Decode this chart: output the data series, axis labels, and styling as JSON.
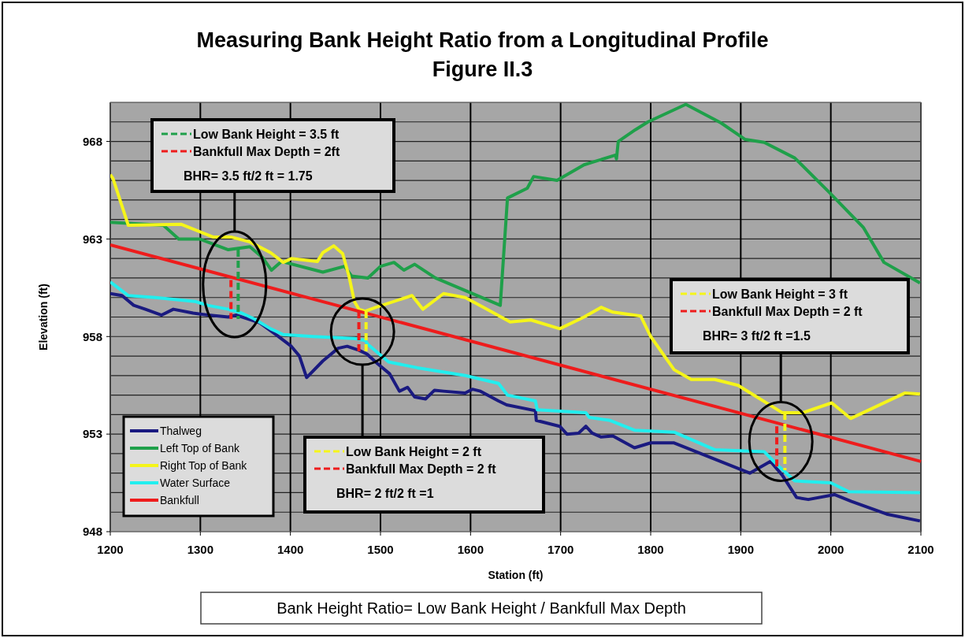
{
  "chart_data": {
    "type": "line",
    "title": "Measuring Bank Height Ratio from a Longitudinal Profile",
    "subtitle": "Figure II.3",
    "xlabel": "Station (ft)",
    "ylabel": "Elevation (ft)",
    "xlim": [
      1200,
      2100
    ],
    "xticks": [
      1200,
      1300,
      1400,
      1500,
      1600,
      1700,
      1800,
      1900,
      2000,
      2100
    ],
    "ylim": [
      948,
      970
    ],
    "yticks": [
      948,
      {
        "value": 949,
        "label": null
      },
      {
        "value": 950,
        "label": null
      },
      {
        "value": 951,
        "label": null
      },
      {
        "value": 952,
        "label": null
      },
      953,
      {
        "value": 954,
        "label": null
      },
      {
        "value": 955,
        "label": null
      },
      {
        "value": 956,
        "label": null
      },
      {
        "value": 957,
        "label": null
      },
      958,
      {
        "value": 959,
        "label": null
      },
      {
        "value": 960,
        "label": null
      },
      {
        "value": 961,
        "label": null
      },
      {
        "value": 962,
        "label": null
      },
      963,
      {
        "value": 964,
        "label": null
      },
      {
        "value": 965,
        "label": null
      },
      {
        "value": 966,
        "label": null
      },
      {
        "value": 967,
        "label": null
      },
      968,
      {
        "value": 969,
        "label": null
      },
      {
        "value": 970,
        "label": null
      }
    ],
    "grid": true,
    "legend": "bottom left",
    "line_style": "solid",
    "series": [
      {
        "name": "Thalweg",
        "color": "#1a1a80",
        "x": [
          1200,
          1213,
          1226,
          1239,
          1257,
          1270,
          1292,
          1309,
          1331,
          1340,
          1366,
          1384,
          1401,
          1410,
          1418,
          1436,
          1453,
          1463,
          1476,
          1485,
          1497,
          1510,
          1521,
          1530,
          1538,
          1550,
          1560,
          1570,
          1594,
          1602,
          1611,
          1631,
          1640,
          1672,
          1673,
          1699,
          1707,
          1720,
          1728,
          1735,
          1745,
          1758,
          1782,
          1800,
          1826,
          1910,
          1933,
          1946,
          1962,
          1975,
          2004,
          2023,
          2062,
          2099
        ],
        "values": [
          960.2,
          960.1,
          959.6,
          959.4,
          959.1,
          959.4,
          959.2,
          959.1,
          959.0,
          959.1,
          958.7,
          958.1,
          957.5,
          957.0,
          955.9,
          956.75,
          957.4,
          957.5,
          957.3,
          957.1,
          956.6,
          956.1,
          955.2,
          955.4,
          954.9,
          954.8,
          955.25,
          955.2,
          955.1,
          955.3,
          955.2,
          954.7,
          954.5,
          954.2,
          953.7,
          953.4,
          953.0,
          953.05,
          953.4,
          953.05,
          952.85,
          952.9,
          952.3,
          952.55,
          952.55,
          951.0,
          951.6,
          950.9,
          949.75,
          949.65,
          949.9,
          949.55,
          948.9,
          948.55
        ]
      },
      {
        "name": "Left Top of Bank",
        "color": "#1fa04a",
        "x": [
          1200,
          1259,
          1276,
          1299,
          1331,
          1355,
          1369,
          1379,
          1390,
          1436,
          1460,
          1468,
          1486,
          1500,
          1515,
          1526,
          1538,
          1561,
          1633,
          1641,
          1663,
          1670,
          1696,
          1726,
          1761,
          1762,
          1764,
          1783,
          1797,
          1839,
          1878,
          1905,
          1926,
          1960,
          1998,
          2036,
          2059,
          2099
        ],
        "values": [
          963.85,
          963.7,
          963.0,
          963.0,
          962.45,
          962.6,
          962.05,
          961.4,
          961.85,
          961.3,
          961.6,
          961.1,
          961.0,
          961.6,
          961.8,
          961.4,
          961.7,
          961.0,
          959.6,
          965.1,
          965.6,
          966.2,
          966.0,
          966.8,
          967.3,
          967.1,
          968.0,
          968.6,
          969.0,
          969.9,
          968.95,
          968.1,
          967.95,
          967.15,
          965.4,
          963.6,
          961.8,
          960.75
        ]
      },
      {
        "name": "Right Top of Bank",
        "color": "#f5f51a",
        "x": [
          1200,
          1203,
          1220,
          1279,
          1314,
          1334,
          1355,
          1378,
          1392,
          1401,
          1430,
          1436,
          1448,
          1458,
          1465,
          1471,
          1476,
          1483,
          1495,
          1535,
          1547,
          1570,
          1594,
          1614,
          1644,
          1667,
          1699,
          1726,
          1745,
          1758,
          1789,
          1800,
          1826,
          1845,
          1871,
          1897,
          1946,
          1969,
          2001,
          2022,
          2082,
          2099
        ],
        "values": [
          966.3,
          966.1,
          963.7,
          963.75,
          963.1,
          963.1,
          962.85,
          962.3,
          961.8,
          962.0,
          961.85,
          962.3,
          962.65,
          962.25,
          961.1,
          959.8,
          959.4,
          959.3,
          959.5,
          960.1,
          959.4,
          960.2,
          960.0,
          959.5,
          958.75,
          958.85,
          958.4,
          959.0,
          959.5,
          959.25,
          959.05,
          958.0,
          956.3,
          955.8,
          955.8,
          955.5,
          954.1,
          954.1,
          954.6,
          953.8,
          955.1,
          955.05
        ]
      },
      {
        "name": "Water Surface",
        "color": "#22eeee",
        "x": [
          1200,
          1220,
          1250,
          1294,
          1308,
          1331,
          1346,
          1360,
          1378,
          1392,
          1425,
          1471,
          1483,
          1486,
          1509,
          1541,
          1594,
          1631,
          1641,
          1672,
          1674,
          1728,
          1732,
          1755,
          1782,
          1826,
          1871,
          1926,
          1941,
          1960,
          2000,
          2020,
          2099
        ],
        "values": [
          960.8,
          960.1,
          960.0,
          959.8,
          959.6,
          959.4,
          959.2,
          958.9,
          958.4,
          958.1,
          958.0,
          957.9,
          957.8,
          957.6,
          956.7,
          956.4,
          956.0,
          955.6,
          955.0,
          954.7,
          954.25,
          954.1,
          953.85,
          953.7,
          953.2,
          953.1,
          952.2,
          952.1,
          951.4,
          950.6,
          950.5,
          950.05,
          950.0
        ]
      },
      {
        "name": "Bankfull",
        "color": "#ee1c1c",
        "x": [
          1200,
          2100
        ],
        "values": [
          962.7,
          951.6
        ]
      },
      {
        "color": "#1fa04a",
        "line_style": "dashed",
        "x": [
          1342,
          1342
        ],
        "values": [
          962.45,
          958.9
        ]
      },
      {
        "color": "#ee1c1c",
        "line_style": "dashed",
        "x": [
          1334,
          1334
        ],
        "values": [
          960.9,
          958.9
        ]
      },
      {
        "color": "#f5f51a",
        "line_style": "dashed",
        "x": [
          1484,
          1484
        ],
        "values": [
          959.3,
          957.2
        ]
      },
      {
        "color": "#ee1c1c",
        "line_style": "dashed",
        "x": [
          1476,
          1476
        ],
        "values": [
          959.3,
          957.2
        ]
      },
      {
        "color": "#f5f51a",
        "line_style": "dashed",
        "x": [
          1949,
          1949
        ],
        "values": [
          954.1,
          951.15
        ]
      },
      {
        "color": "#ee1c1c",
        "line_style": "dashed",
        "x": [
          1940,
          1940
        ],
        "values": [
          953.4,
          951.3
        ]
      }
    ],
    "annotations": [
      "Low Bank Height = 3.5 ft",
      "Bankfull Max Depth = 2ft",
      "BHR= 3.5 ft/2 ft = 1.75",
      "Low Bank Height = 2 ft",
      "Bankfull Max Depth = 2 ft",
      "BHR= 2 ft/2 ft =1",
      "Low Bank Height = 3 ft",
      "Bankfull Max Depth = 2 ft",
      "BHR= 3 ft/2 ft =1.5",
      "Bank Height Ratio= Low Bank Height / Bankfull Max Depth"
    ]
  }
}
